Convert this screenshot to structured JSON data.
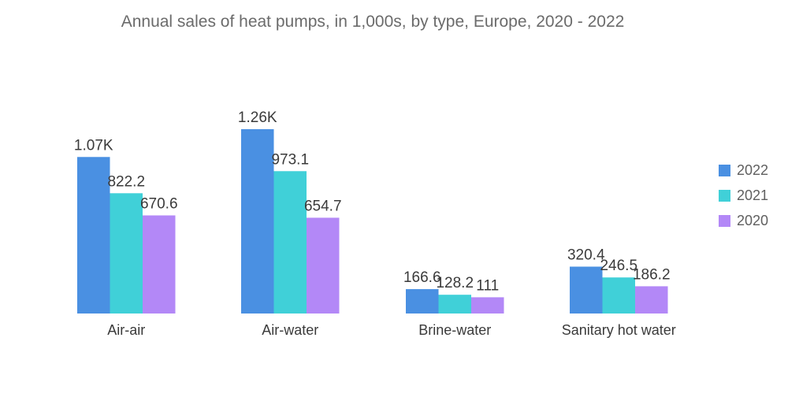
{
  "chart_data": {
    "type": "bar",
    "title": "Annual sales of heat pumps, in 1,000s, by type, Europe, 2020 - 2022",
    "categories": [
      "Air-air",
      "Air-water",
      "Brine-water",
      "Sanitary hot water"
    ],
    "series": [
      {
        "name": "2022",
        "color": "#4a90e2",
        "values": [
          1070,
          1260,
          166.6,
          320.4
        ],
        "labels": [
          "1.07K",
          "1.26K",
          "166.6",
          "320.4"
        ]
      },
      {
        "name": "2021",
        "color": "#40d0d8",
        "values": [
          822.2,
          973.1,
          128.2,
          246.5
        ],
        "labels": [
          "822.2",
          "973.1",
          "128.2",
          "246.5"
        ]
      },
      {
        "name": "2020",
        "color": "#b388f7",
        "values": [
          670.6,
          654.7,
          111,
          186.2
        ],
        "labels": [
          "670.6",
          "654.7",
          "111",
          "186.2"
        ]
      }
    ],
    "legend_position": "right",
    "grid": false,
    "ylim": [
      0,
      1300
    ]
  }
}
